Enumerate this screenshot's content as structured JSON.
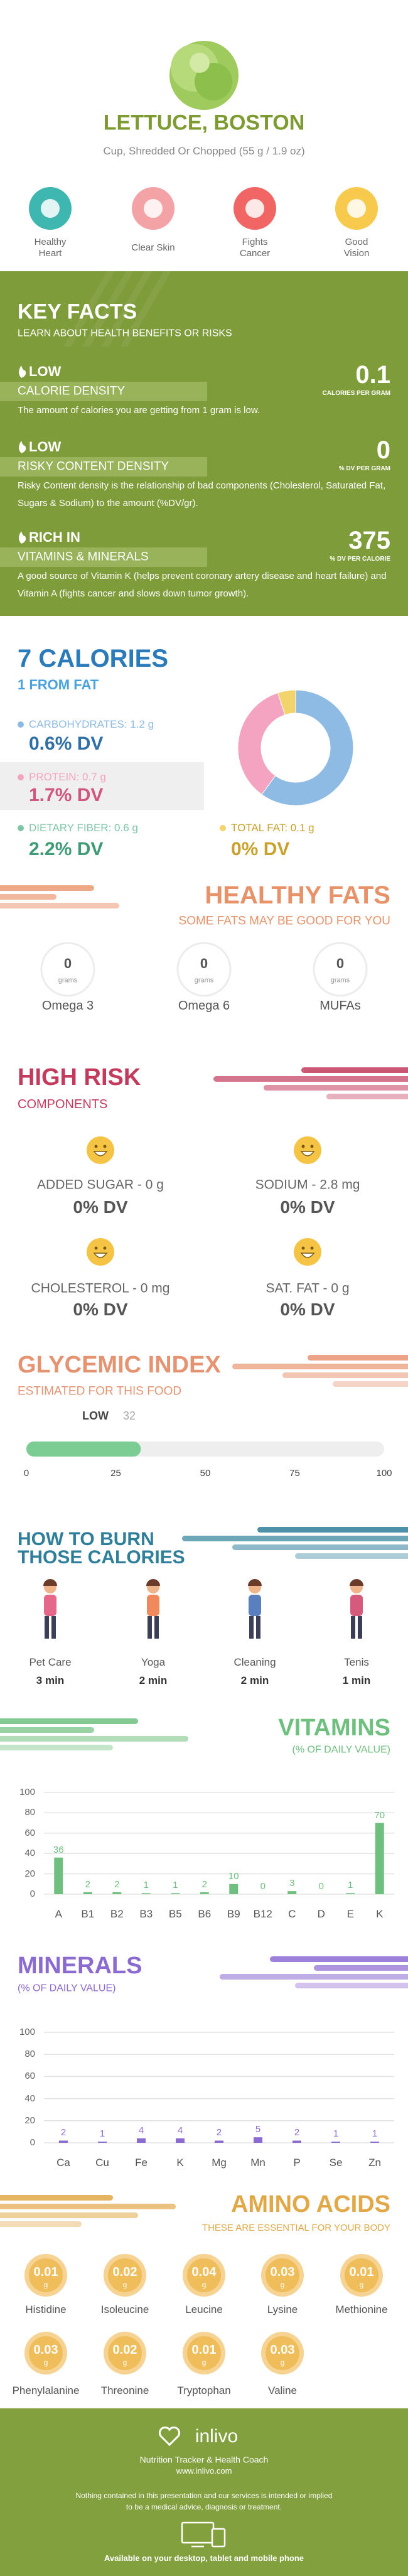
{
  "header": {
    "title": "LETTUCE, BOSTON",
    "subtitle": "Cup, Shredded Or Chopped (55 g / 1.9 oz)"
  },
  "benefits": [
    "Healthy Heart",
    "Clear Skin",
    "Fights Cancer",
    "Good Vision"
  ],
  "key_facts": {
    "title": "KEY FACTS",
    "subtitle": "LEARN ABOUT HEALTH BENEFITS OR RISKS",
    "items": [
      {
        "level": "LOW",
        "name": "CALORIE DENSITY",
        "value": 0.1,
        "unit": "CALORIES PER GRAM",
        "description": "The amount of calories you are getting from 1 gram is low."
      },
      {
        "level": "LOW",
        "name": "RISKY CONTENT DENSITY",
        "value": 0,
        "unit": "% DV PER GRAM",
        "description": "Risky Content density is the relationship of bad components (Cholesterol, Saturated Fat, Sugars & Sodium) to the amount (%DV/gr)."
      },
      {
        "level": "RICH IN",
        "name": "VITAMINS & MINERALS",
        "value": 375,
        "unit": "% DV PER CALORIE",
        "description": "A good source of Vitamin K (helps prevent coronary artery disease and heart failure) and Vitamin A (fights cancer and slows down tumor growth)."
      }
    ]
  },
  "calories": {
    "title": "7 CALORIES",
    "subtitle": "1 FROM FAT",
    "macros": [
      {
        "label": "CARBOHYDRATES:",
        "grams": 1.2,
        "unit": "g",
        "dv": "0.6% DV",
        "color": "#8dbbe3"
      },
      {
        "label": "PROTEIN:",
        "grams": 0.7,
        "unit": "g",
        "dv": "1.7% DV",
        "color": "#f4a3c0"
      },
      {
        "label": "DIETARY FIBER:",
        "grams": 0.6,
        "unit": "g",
        "dv": "2.2% DV",
        "color": "#7fc6a8"
      },
      {
        "label": "TOTAL FAT:",
        "grams": 0.1,
        "unit": "g",
        "dv": "0% DV",
        "color": "#f3d36c"
      }
    ]
  },
  "healthy_fats": {
    "title": "HEALTHY FATS",
    "subtitle": "SOME FATS MAY BE GOOD FOR YOU",
    "items": [
      {
        "name": "Omega 3",
        "value": 0,
        "unit": "grams"
      },
      {
        "name": "Omega 6",
        "value": 0,
        "unit": "grams"
      },
      {
        "name": "MUFAs",
        "value": 0,
        "unit": "grams"
      }
    ]
  },
  "high_risk": {
    "title": "HIGH RISK",
    "subtitle": "COMPONENTS",
    "items": [
      {
        "label": "ADDED SUGAR - 0 g",
        "dv": "0% DV"
      },
      {
        "label": "SODIUM - 2.8 mg",
        "dv": "0% DV"
      },
      {
        "label": "CHOLESTEROL - 0 mg",
        "dv": "0% DV"
      },
      {
        "label": "SAT. FAT - 0 g",
        "dv": "0% DV"
      }
    ]
  },
  "glycemic_index": {
    "title": "GLYCEMIC INDEX",
    "subtitle": "ESTIMATED FOR THIS FOOD",
    "level": "LOW",
    "value": 32,
    "xlim": [
      0,
      100
    ],
    "xticks": [
      0,
      25,
      50,
      75,
      100
    ]
  },
  "burn": {
    "title_lines": [
      "HOW TO BURN",
      "THOSE CALORIES"
    ],
    "activities": [
      {
        "name": "Pet Care",
        "time": "3 min"
      },
      {
        "name": "Yoga",
        "time": "2 min"
      },
      {
        "name": "Cleaning",
        "time": "2 min"
      },
      {
        "name": "Tenis",
        "time": "1 min"
      }
    ]
  },
  "chart_data": [
    {
      "type": "bar",
      "title": "VITAMINS",
      "subtitle": "(% OF DAILY VALUE)",
      "categories": [
        "A",
        "B1",
        "B2",
        "B3",
        "B5",
        "B6",
        "B9",
        "B12",
        "C",
        "D",
        "E",
        "K"
      ],
      "values": [
        36,
        2,
        2,
        1,
        1,
        2,
        10,
        0,
        3,
        0,
        1,
        70
      ],
      "color": "#6fbf7e",
      "ylim": [
        0,
        100
      ],
      "yticks": [
        0,
        20,
        40,
        60,
        80,
        100
      ],
      "grid": true
    },
    {
      "type": "bar",
      "title": "MINERALS",
      "subtitle": "(% OF DAILY VALUE)",
      "categories": [
        "Ca",
        "Cu",
        "Fe",
        "K",
        "Mg",
        "Mn",
        "P",
        "Se",
        "Zn"
      ],
      "values": [
        2,
        1,
        4,
        4,
        2,
        5,
        2,
        1,
        1
      ],
      "color": "#8b6ad2",
      "ylim": [
        0,
        100
      ],
      "yticks": [
        0,
        20,
        40,
        60,
        80,
        100
      ],
      "grid": true
    }
  ],
  "amino_acids": {
    "title": "AMINO ACIDS",
    "subtitle": "THESE ARE ESSENTIAL FOR YOUR BODY",
    "unit": "g",
    "items": [
      {
        "name": "Histidine",
        "value": 0.01
      },
      {
        "name": "Isoleucine",
        "value": 0.02
      },
      {
        "name": "Leucine",
        "value": 0.04
      },
      {
        "name": "Lysine",
        "value": 0.03
      },
      {
        "name": "Methionine",
        "value": 0.01
      },
      {
        "name": "Phenylalanine",
        "value": 0.03
      },
      {
        "name": "Threonine",
        "value": 0.02
      },
      {
        "name": "Tryptophan",
        "value": 0.01
      },
      {
        "name": "Valine",
        "value": 0.03
      }
    ]
  },
  "footer": {
    "brand": "inlivo",
    "tagline": "Nutrition Tracker & Health Coach",
    "url": "www.inlivo.com",
    "disclaimer": "Nothing contained in this presentation and our services is intended or implied to be a medical advice, diagnosis or treatment.",
    "availability": "Available on your desktop, tablet and mobile phone"
  }
}
